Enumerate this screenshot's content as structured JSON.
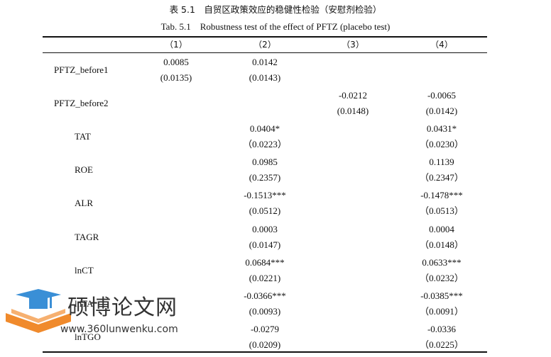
{
  "caption_cn": "表 5.1　自贸区政策效应的稳健性检验（安慰剂检验）",
  "caption_en": "Tab. 5.1　Robustness test of the effect of PFTZ (placebo test)",
  "columns": [
    "（1）",
    "（2）",
    "（3）",
    "（4）"
  ],
  "rows": [
    {
      "var": "PFTZ_before1",
      "cells": [
        [
          "0.0085",
          "(0.0135)"
        ],
        [
          "0.0142",
          "(0.0143)"
        ],
        [
          "",
          ""
        ],
        [
          "",
          ""
        ]
      ]
    },
    {
      "var": "PFTZ_before2",
      "cells": [
        [
          "",
          ""
        ],
        [
          "",
          ""
        ],
        [
          "-0.0212",
          "(0.0148)"
        ],
        [
          "-0.0065",
          "(0.0142)"
        ]
      ]
    },
    {
      "var": "TAT",
      "cells": [
        [
          "",
          ""
        ],
        [
          "0.0404*",
          "（0.0223）"
        ],
        [
          "",
          ""
        ],
        [
          "0.0431*",
          "（0.0230）"
        ]
      ]
    },
    {
      "var": "ROE",
      "cells": [
        [
          "",
          ""
        ],
        [
          "0.0985",
          "(0.2357)"
        ],
        [
          "",
          ""
        ],
        [
          "0.1139",
          "（0.2347）"
        ]
      ]
    },
    {
      "var": "ALR",
      "cells": [
        [
          "",
          ""
        ],
        [
          "-0.1513***",
          "(0.0512)"
        ],
        [
          "",
          ""
        ],
        [
          "-0.1478***",
          "（0.0513）"
        ]
      ]
    },
    {
      "var": "TAGR",
      "cells": [
        [
          "",
          ""
        ],
        [
          "0.0003",
          "(0.0147)"
        ],
        [
          "",
          ""
        ],
        [
          "0.0004",
          "（0.0148）"
        ]
      ]
    },
    {
      "var": "lnCT",
      "cells": [
        [
          "",
          ""
        ],
        [
          "0.0684***",
          "(0.0221)"
        ],
        [
          "",
          ""
        ],
        [
          "0.0633***",
          "（0.0232）"
        ]
      ]
    },
    {
      "var": "lnTA",
      "cells": [
        [
          "",
          ""
        ],
        [
          "-0.0366***",
          "(0.0093)"
        ],
        [
          "",
          ""
        ],
        [
          "-0.0385***",
          "（0.0091）"
        ]
      ]
    },
    {
      "var": "lnTGO",
      "cells": [
        [
          "",
          ""
        ],
        [
          "-0.0279",
          "(0.0209)"
        ],
        [
          "",
          ""
        ],
        [
          "-0.0336",
          "（0.0225）"
        ]
      ]
    }
  ],
  "watermark": {
    "logo_icon": "graduation-cap-book-icon",
    "title": "硕博论文网",
    "url": "www.360lunwenku.com",
    "colors": {
      "cap": "#3a8fd6",
      "book": "#f08a2c"
    }
  }
}
